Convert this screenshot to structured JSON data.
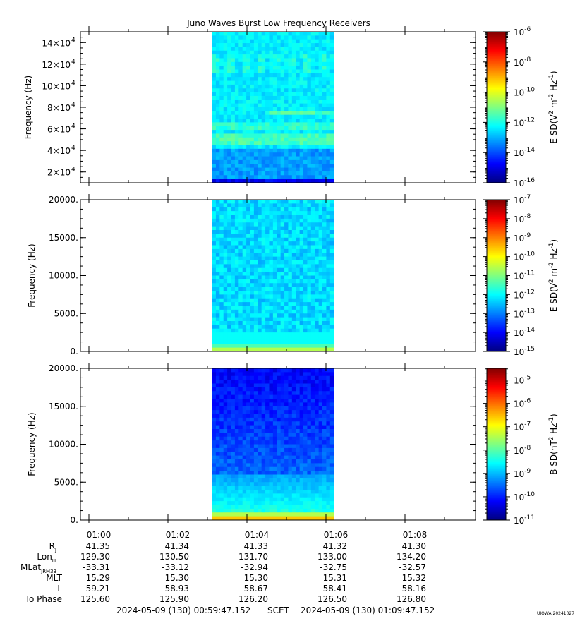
{
  "title": "Juno Waves Burst Low Frequency Receivers",
  "footer": {
    "start": "2024-05-09 (130) 00:59:47.152",
    "scet": "SCET",
    "end": "2024-05-09 (130) 01:09:47.152",
    "credit": "UIOWA 20241027"
  },
  "colors": {
    "background": "#ffffff",
    "axis": "#000000"
  },
  "ephemeris": {
    "time_labels": [
      "01:00",
      "01:02",
      "01:04",
      "01:06",
      "01:08"
    ],
    "rows": [
      {
        "label": "R",
        "sub": "J",
        "values": [
          "41.35",
          "41.34",
          "41.33",
          "41.32",
          "41.30"
        ]
      },
      {
        "label": "Lon",
        "sub": "III",
        "values": [
          "129.30",
          "130.50",
          "131.70",
          "133.00",
          "134.20"
        ]
      },
      {
        "label": "MLat",
        "sub": "JRM33",
        "values": [
          "-33.31",
          "-33.12",
          "-32.94",
          "-32.75",
          "-32.57"
        ]
      },
      {
        "label": "MLT",
        "sub": "",
        "values": [
          "15.29",
          "15.30",
          "15.30",
          "15.31",
          "15.32"
        ]
      },
      {
        "label": "L",
        "sub": "",
        "values": [
          "59.21",
          "58.93",
          "58.67",
          "58.41",
          "58.16"
        ]
      },
      {
        "label": "Io Phase",
        "sub": "",
        "values": [
          "125.60",
          "125.90",
          "126.20",
          "126.50",
          "126.80"
        ]
      }
    ]
  },
  "chart_data": [
    {
      "type": "heatmap",
      "title": "Juno Waves Burst Low Frequency Receivers",
      "ylabel": "Frequency (Hz)",
      "xlabel": "",
      "ylim": [
        10000,
        150000
      ],
      "yticks": [
        20000,
        40000,
        60000,
        80000,
        100000,
        120000,
        140000
      ],
      "yticklabels": [
        {
          "m": "2",
          "e": "4"
        },
        {
          "m": "4",
          "e": "4"
        },
        {
          "m": "6",
          "e": "4"
        },
        {
          "m": "8",
          "e": "4"
        },
        {
          "m": "10",
          "e": "4"
        },
        {
          "m": "12",
          "e": "4"
        },
        {
          "m": "14",
          "e": "4"
        }
      ],
      "xlim": [
        "00:59:47.152",
        "01:09:47.152"
      ],
      "data_interval": [
        "01:03:07",
        "01:06:12"
      ],
      "description": "E spectral density: blue below ~40 kHz, cyan-green banded above, green bands near 50, 60, 75 kHz",
      "colorbar": {
        "label": "E SD(V",
        "label_parts": [
          "E SD(V",
          "2",
          " m",
          "-2",
          " Hz",
          "-1",
          ")"
        ],
        "scale": "log",
        "range_exp": [
          -16,
          -6
        ],
        "ticks": [
          {
            "m": "10",
            "e": "-6"
          },
          {
            "m": "10",
            "e": "-8"
          },
          {
            "m": "10",
            "e": "-10"
          },
          {
            "m": "10",
            "e": "-12"
          },
          {
            "m": "10",
            "e": "-14"
          },
          {
            "m": "10",
            "e": "-16"
          }
        ],
        "tick_exps": [
          -6,
          -8,
          -10,
          -12,
          -14,
          -16
        ]
      }
    },
    {
      "type": "heatmap",
      "ylabel": "Frequency (Hz)",
      "ylim": [
        0,
        20000
      ],
      "yticks": [
        0,
        5000,
        10000,
        15000,
        20000
      ],
      "yticklabels": [
        "0.",
        "5000.",
        "10000.",
        "15000.",
        "20000."
      ],
      "xlim": [
        "00:59:47.152",
        "01:09:47.152"
      ],
      "data_interval": [
        "01:03:07",
        "01:06:12"
      ],
      "description": "E spectral density: cyan/blue speckle, green band near 0-1 kHz",
      "colorbar": {
        "label_parts": [
          "E SD(V",
          "2",
          " m",
          "-2",
          " Hz",
          "-1",
          ")"
        ],
        "scale": "log",
        "range_exp": [
          -15,
          -7
        ],
        "ticks": [
          {
            "m": "10",
            "e": "-7"
          },
          {
            "m": "10",
            "e": "-8"
          },
          {
            "m": "10",
            "e": "-9"
          },
          {
            "m": "10",
            "e": "-10"
          },
          {
            "m": "10",
            "e": "-11"
          },
          {
            "m": "10",
            "e": "-12"
          },
          {
            "m": "10",
            "e": "-13"
          },
          {
            "m": "10",
            "e": "-14"
          },
          {
            "m": "10",
            "e": "-15"
          }
        ],
        "tick_exps": [
          -7,
          -8,
          -9,
          -10,
          -11,
          -12,
          -13,
          -14,
          -15
        ]
      }
    },
    {
      "type": "heatmap",
      "ylabel": "Frequency (Hz)",
      "ylim": [
        0,
        20000
      ],
      "yticks": [
        0,
        5000,
        10000,
        15000,
        20000
      ],
      "yticklabels": [
        "0.",
        "5000.",
        "10000.",
        "15000.",
        "20000."
      ],
      "xlim": [
        "00:59:47.152",
        "01:09:47.152"
      ],
      "data_interval": [
        "01:03:07",
        "01:06:12"
      ],
      "description": "B spectral density: dark blue at high frequency grading to cyan, green and yellow band near 0-1 kHz",
      "colorbar": {
        "label_parts": [
          "B SD(nT",
          "2",
          " Hz",
          "-1",
          ")"
        ],
        "scale": "log",
        "range_exp": [
          -11,
          -4.5
        ],
        "ticks": [
          {
            "m": "10",
            "e": "-5"
          },
          {
            "m": "10",
            "e": "-6"
          },
          {
            "m": "10",
            "e": "-7"
          },
          {
            "m": "10",
            "e": "-8"
          },
          {
            "m": "10",
            "e": "-9"
          },
          {
            "m": "10",
            "e": "-10"
          },
          {
            "m": "10",
            "e": "-11"
          }
        ],
        "tick_exps": [
          -5,
          -6,
          -7,
          -8,
          -9,
          -10,
          -11
        ]
      }
    }
  ]
}
